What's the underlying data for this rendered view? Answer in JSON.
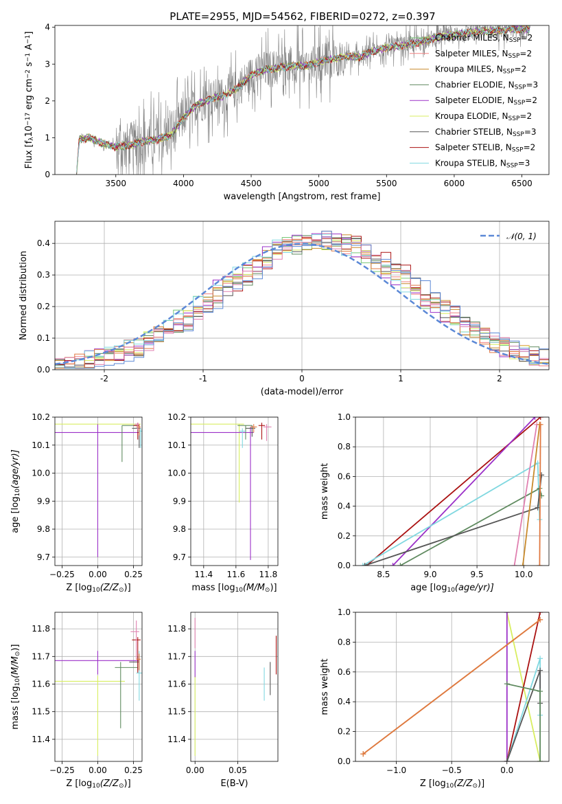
{
  "title": "PLATE=2955, MJD=54562, FIBERID=0272, z=0.397",
  "series_colors": {
    "Chabrier MILES": "#77c777",
    "Salpeter MILES": "#f08080",
    "Kroupa MILES": "#c88a2c",
    "Chabrier ELODIE": "#5f8a5f",
    "Salpeter ELODIE": "#9b30c8",
    "Kroupa ELODIE": "#d8ee60",
    "Chabrier STELIB": "#555555",
    "Salpeter STELIB": "#aa1111",
    "Kroupa STELIB": "#80d8e0",
    "Orange": "#e07840",
    "Pink": "#e080b0"
  },
  "chart_data": [
    {
      "type": "line",
      "panel": "spectrum",
      "xlabel": "wavelength [Angstrom, rest frame]",
      "ylabel_parts": [
        "Flux [f",
        "λ",
        "10",
        "−17",
        " erg cm",
        "−2",
        " s",
        "−1",
        " A",
        "−1",
        "]"
      ],
      "xlim": [
        3050,
        6700
      ],
      "ylim": [
        0,
        4.05
      ],
      "xticks": [
        3500,
        4000,
        4500,
        5000,
        5500,
        6000,
        6500
      ],
      "yticks": [
        0,
        1,
        2,
        3,
        4
      ],
      "legend_placement": "upper-right",
      "legend": [
        {
          "name": "Chabrier MILES",
          "sub": "SSP",
          "n": "2",
          "color": "#77c777"
        },
        {
          "name": "Salpeter MILES",
          "sub": "SSP",
          "n": "2",
          "color": "#f08080"
        },
        {
          "name": "Kroupa MILES",
          "sub": "SSP",
          "n": "2",
          "color": "#c88a2c"
        },
        {
          "name": "Chabrier ELODIE",
          "sub": "SSP",
          "n": "3",
          "color": "#5f8a5f"
        },
        {
          "name": "Salpeter ELODIE",
          "sub": "SSP",
          "n": "2",
          "color": "#9b30c8"
        },
        {
          "name": "Kroupa ELODIE",
          "sub": "SSP",
          "n": "2",
          "color": "#d8ee60"
        },
        {
          "name": "Chabrier STELIB",
          "sub": "SSP",
          "n": "3",
          "color": "#555555"
        },
        {
          "name": "Salpeter STELIB",
          "sub": "SSP",
          "n": "2",
          "color": "#aa1111"
        },
        {
          "name": "Kroupa STELIB",
          "sub": "SSP",
          "n": "3",
          "color": "#80d8e0"
        }
      ],
      "data_range": [
        3210,
        6560
      ],
      "model_continuum": {
        "x": [
          3210,
          3230,
          3300,
          3400,
          3500,
          3600,
          3700,
          3800,
          3900,
          4000,
          4100,
          4200,
          4300,
          4400,
          4500,
          4600,
          4700,
          4800,
          4900,
          5000,
          5100,
          5200,
          5300,
          5400,
          5500,
          5600,
          5700,
          5800,
          5900,
          6000,
          6100,
          6200,
          6300,
          6400,
          6500,
          6560
        ],
        "y": [
          0.0,
          0.95,
          1.0,
          0.85,
          0.75,
          0.8,
          0.9,
          0.95,
          1.05,
          1.55,
          1.9,
          2.05,
          2.15,
          2.35,
          2.7,
          2.85,
          2.9,
          2.95,
          2.95,
          3.05,
          3.15,
          3.2,
          3.2,
          3.35,
          3.45,
          3.5,
          3.55,
          3.65,
          3.75,
          3.8,
          3.85,
          3.9,
          3.9,
          3.95,
          3.95,
          3.95
        ]
      }
    },
    {
      "type": "histogram",
      "panel": "residuals",
      "xlabel": "(data-model)/error",
      "ylabel": "Normed distribution",
      "xlim": [
        -2.5,
        2.5
      ],
      "ylim": [
        0,
        0.47
      ],
      "xticks": [
        -2,
        -1,
        0,
        1,
        2
      ],
      "yticks": [
        0.0,
        0.1,
        0.2,
        0.3,
        0.4
      ],
      "grid": true,
      "legend_placement": "upper-right",
      "legend": [
        {
          "name": "𝒩(0, 1)",
          "style": "dashed",
          "color": "#5b88d6"
        }
      ],
      "bin_width": 0.1,
      "bin_start": -2.5,
      "histogram_colors": [
        "#77c777",
        "#f08080",
        "#c88a2c",
        "#5f8a5f",
        "#9b30c8",
        "#d8ee60",
        "#555555",
        "#aa1111",
        "#80d8e0",
        "#e07840",
        "#e080b0",
        "#5b88d6"
      ]
    },
    {
      "type": "errorbar",
      "panel": "age-vs-Z",
      "xlabel_parts": [
        "Z [log",
        "10",
        "(Z/Z",
        "⊙",
        ")]"
      ],
      "ylabel_parts": [
        "age  [log",
        "10",
        "(age/yr)]"
      ],
      "xlim": [
        -0.3,
        0.31
      ],
      "ylim": [
        9.67,
        10.2
      ],
      "xticks": [
        -0.25,
        0.0,
        0.25
      ],
      "xticklabels": [
        "−0.25",
        "0.00",
        "0.25"
      ],
      "yticks": [
        9.7,
        9.8,
        9.9,
        10.0,
        10.1,
        10.2
      ],
      "points": [
        {
          "x": 0.29,
          "y": 10.175,
          "xl": 0.6,
          "xr": 0.01,
          "yl": 0.005,
          "yu": 0.0,
          "color": "#d8ee60"
        },
        {
          "x": 0.0,
          "y": 10.145,
          "xl": 0.3,
          "xr": 0.29,
          "yl": 0.445,
          "yu": 0.03,
          "color": "#9b30c8"
        },
        {
          "x": 0.17,
          "y": 10.17,
          "xl": 0.0,
          "xr": 0.12,
          "yl": 0.13,
          "yu": 0.0,
          "color": "#5f8a5f"
        },
        {
          "x": 0.29,
          "y": 10.16,
          "xl": 0.05,
          "xr": 0.01,
          "yl": 0.07,
          "yu": 0.01,
          "color": "#555555"
        },
        {
          "x": 0.28,
          "y": 10.17,
          "xl": 0.03,
          "xr": 0.01,
          "yl": 0.05,
          "yu": 0.01,
          "color": "#aa1111"
        },
        {
          "x": 0.3,
          "y": 10.15,
          "xl": 0.02,
          "xr": 0.01,
          "yl": 0.06,
          "yu": 0.01,
          "color": "#80d8e0"
        },
        {
          "x": 0.29,
          "y": 10.165,
          "xl": 0.02,
          "xr": 0.01,
          "yl": 0.03,
          "yu": 0.01,
          "color": "#e07840"
        },
        {
          "x": 0.28,
          "y": 10.175,
          "xl": 0.02,
          "xr": 0.01,
          "yl": 0.02,
          "yu": 0.005,
          "color": "#e080b0"
        }
      ]
    },
    {
      "type": "errorbar",
      "panel": "age-vs-mass",
      "xlabel_parts": [
        "mass [log",
        "10",
        "(M/M",
        "⊙",
        ")]"
      ],
      "xlim": [
        11.32,
        11.86
      ],
      "ylim": [
        9.67,
        10.2
      ],
      "xticks": [
        11.4,
        11.6,
        11.8
      ],
      "xticklabels": [
        "11.4",
        "11.6",
        "11.8"
      ],
      "yticks": [
        9.7,
        9.8,
        9.9,
        10.0,
        10.1,
        10.2
      ],
      "points": [
        {
          "x": 11.62,
          "y": 10.175,
          "xl": 0.3,
          "xr": 0.03,
          "yl": 0.28,
          "yu": 0.0,
          "color": "#d8ee60"
        },
        {
          "x": 11.69,
          "y": 10.145,
          "xl": 0.37,
          "xr": 0.02,
          "yl": 0.455,
          "yu": 0.02,
          "color": "#9b30c8"
        },
        {
          "x": 11.66,
          "y": 10.17,
          "xl": 0.05,
          "xr": 0.04,
          "yl": 0.05,
          "yu": 0.0,
          "color": "#5f8a5f"
        },
        {
          "x": 11.7,
          "y": 10.16,
          "xl": 0.04,
          "xr": 0.02,
          "yl": 0.03,
          "yu": 0.01,
          "color": "#555555"
        },
        {
          "x": 11.76,
          "y": 10.17,
          "xl": 0.02,
          "xr": 0.02,
          "yl": 0.05,
          "yu": 0.01,
          "color": "#aa1111"
        },
        {
          "x": 11.64,
          "y": 10.15,
          "xl": 0.02,
          "xr": 0.02,
          "yl": 0.06,
          "yu": 0.01,
          "color": "#80d8e0"
        },
        {
          "x": 11.79,
          "y": 10.165,
          "xl": 0.02,
          "xr": 0.03,
          "yl": 0.05,
          "yu": 0.01,
          "color": "#e080b0"
        },
        {
          "x": 11.71,
          "y": 10.165,
          "xl": 0.02,
          "xr": 0.02,
          "yl": 0.02,
          "yu": 0.01,
          "color": "#e07840"
        }
      ]
    },
    {
      "type": "line",
      "panel": "weight-vs-age",
      "xlabel_parts": [
        "age  [log",
        "10",
        "(age/yr)]"
      ],
      "ylabel": "mass weight",
      "xlim": [
        8.2,
        10.27
      ],
      "ylim": [
        0,
        1
      ],
      "xticks": [
        8.5,
        9.0,
        9.5,
        10.0
      ],
      "xticklabels": [
        "8.5",
        "9.0",
        "9.5",
        "10.0"
      ],
      "yticks": [
        0.0,
        0.2,
        0.4,
        0.6,
        0.8,
        1.0
      ],
      "grid": true,
      "series": [
        {
          "color": "#aa1111",
          "x": [
            8.32,
            10.18
          ],
          "y": [
            0.0,
            1.0
          ]
        },
        {
          "color": "#9b30c8",
          "x": [
            8.6,
            10.12
          ],
          "y": [
            0.0,
            1.0
          ]
        },
        {
          "color": "#80d8e0",
          "x": [
            8.28,
            10.15,
            10.17
          ],
          "y": [
            0.0,
            0.69,
            0.31
          ]
        },
        {
          "color": "#5f8a5f",
          "x": [
            8.68,
            10.17,
            10.19
          ],
          "y": [
            0.0,
            0.52,
            0.47
          ]
        },
        {
          "color": "#555555",
          "x": [
            8.3,
            10.15,
            10.19
          ],
          "y": [
            0.0,
            0.39,
            0.61
          ]
        },
        {
          "color": "#e080b0",
          "x": [
            9.9,
            10.14
          ],
          "y": [
            0.0,
            0.95
          ]
        },
        {
          "color": "#c88a2c",
          "x": [
            9.99,
            10.17
          ],
          "y": [
            0.0,
            0.95
          ]
        },
        {
          "color": "#e07840",
          "x": [
            10.17,
            10.18
          ],
          "y": [
            0.0,
            0.95
          ]
        }
      ]
    },
    {
      "type": "errorbar",
      "panel": "mass-vs-Z",
      "xlabel_parts": [
        "Z [log",
        "10",
        "(Z/Z",
        "⊙",
        ")]"
      ],
      "ylabel_parts": [
        "mass [log",
        "10",
        "(M/M",
        "⊙",
        ")]"
      ],
      "xlim": [
        -0.3,
        0.31
      ],
      "ylim": [
        11.32,
        11.86
      ],
      "xticks": [
        -0.25,
        0.0,
        0.25
      ],
      "xticklabels": [
        "−0.25",
        "0.00",
        "0.25"
      ],
      "yticks": [
        11.4,
        11.5,
        11.6,
        11.7,
        11.8
      ],
      "points": [
        {
          "x": 0.0,
          "y": 11.61,
          "xl": 0.3,
          "xr": 0.19,
          "yl": 0.27,
          "yu": 0.02,
          "color": "#d8ee60"
        },
        {
          "x": 0.0,
          "y": 11.685,
          "xl": 0.3,
          "xr": 0.29,
          "yl": 0.05,
          "yu": 0.035,
          "color": "#9b30c8"
        },
        {
          "x": 0.16,
          "y": 11.66,
          "xl": 0.04,
          "xr": 0.12,
          "yl": 0.22,
          "yu": 0.02,
          "color": "#5f8a5f"
        },
        {
          "x": 0.28,
          "y": 11.68,
          "xl": 0.06,
          "xr": 0.01,
          "yl": 0.03,
          "yu": 0.02,
          "color": "#555555"
        },
        {
          "x": 0.28,
          "y": 11.76,
          "xl": 0.04,
          "xr": 0.02,
          "yl": 0.12,
          "yu": 0.01,
          "color": "#aa1111"
        },
        {
          "x": 0.29,
          "y": 11.64,
          "xl": 0.02,
          "xr": 0.02,
          "yl": 0.1,
          "yu": 0.08,
          "color": "#80d8e0"
        },
        {
          "x": 0.27,
          "y": 11.79,
          "xl": 0.04,
          "xr": 0.02,
          "yl": 0.1,
          "yu": 0.04,
          "color": "#e080b0"
        },
        {
          "x": 0.29,
          "y": 11.69,
          "xl": 0.02,
          "xr": 0.01,
          "yl": 0.04,
          "yu": 0.02,
          "color": "#e07840"
        }
      ]
    },
    {
      "type": "errorbar",
      "panel": "mass-vs-EBV",
      "xlabel": "E(B-V)",
      "xlim": [
        -0.005,
        0.097
      ],
      "ylim": [
        11.32,
        11.86
      ],
      "xticks": [
        0.0,
        0.05
      ],
      "xticklabels": [
        "0.00",
        "0.05"
      ],
      "yticks": [
        11.4,
        11.5,
        11.6,
        11.7,
        11.8
      ],
      "points": [
        {
          "x": 0.0,
          "y": 11.61,
          "xl": 0.0,
          "xr": 0.0,
          "yl": 0.27,
          "yu": 0.02,
          "color": "#d8ee60"
        },
        {
          "x": 0.0,
          "y": 11.685,
          "xl": 0.0,
          "xr": 0.0,
          "yl": 0.06,
          "yu": 0.035,
          "color": "#9b30c8"
        },
        {
          "x": 0.0,
          "y": 11.79,
          "xl": 0.0,
          "xr": 0.0,
          "yl": 0.06,
          "yu": 0.05,
          "color": "#e080b0"
        },
        {
          "x": 0.081,
          "y": 11.6,
          "xl": 0.0,
          "xr": 0.0,
          "yl": 0.06,
          "yu": 0.06,
          "color": "#80d8e0"
        },
        {
          "x": 0.088,
          "y": 11.62,
          "xl": 0.0,
          "xr": 0.0,
          "yl": 0.06,
          "yu": 0.06,
          "color": "#555555"
        },
        {
          "x": 0.095,
          "y": 11.705,
          "xl": 0.0,
          "xr": 0.0,
          "yl": 0.07,
          "yu": 0.07,
          "color": "#aa1111"
        }
      ]
    },
    {
      "type": "line",
      "panel": "weight-vs-Z",
      "xlabel_parts": [
        "Z [log",
        "10",
        "(Z/Z",
        "⊙",
        ")]"
      ],
      "ylabel": "mass weight",
      "xlim": [
        -1.37,
        0.38
      ],
      "ylim": [
        0,
        1
      ],
      "xticks": [
        -1.0,
        -0.5,
        0.0
      ],
      "xticklabels": [
        "−1.0",
        "−0.5",
        "0.0"
      ],
      "yticks": [
        0.0,
        0.2,
        0.4,
        0.6,
        0.8,
        1.0
      ],
      "grid": true,
      "series": [
        {
          "color": "#d8ee60",
          "x": [
            0.0,
            0.3
          ],
          "y": [
            1.0,
            0.0
          ]
        },
        {
          "color": "#9b30c8",
          "x": [
            0.0,
            0.0
          ],
          "y": [
            0.0,
            1.0
          ]
        },
        {
          "color": "#aa1111",
          "x": [
            0.0,
            0.3
          ],
          "y": [
            0.0,
            1.0
          ]
        },
        {
          "color": "#80d8e0",
          "x": [
            0.0,
            0.3,
            0.3
          ],
          "y": [
            0.0,
            0.69,
            0.31
          ]
        },
        {
          "color": "#555555",
          "x": [
            0.0,
            0.3,
            0.3
          ],
          "y": [
            0.0,
            0.61,
            0.39
          ]
        },
        {
          "color": "#5f8a5f",
          "x": [
            0.0,
            0.3,
            0.3
          ],
          "y": [
            0.52,
            0.47,
            0.0
          ]
        },
        {
          "color": "#c88a2c",
          "x": [
            -1.3,
            0.3
          ],
          "y": [
            0.05,
            0.95
          ]
        },
        {
          "color": "#e07840",
          "x": [
            -1.3,
            0.3
          ],
          "y": [
            0.05,
            0.95
          ]
        }
      ]
    }
  ]
}
